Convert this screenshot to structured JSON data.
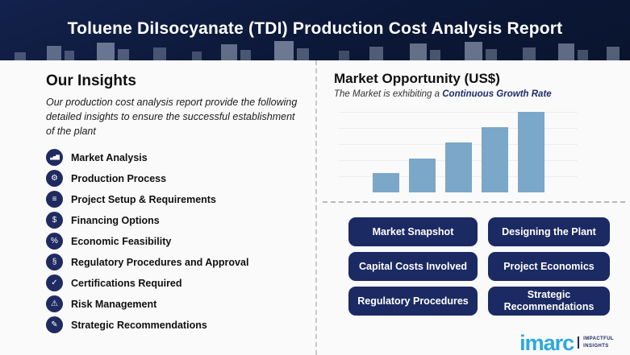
{
  "header": {
    "title": "Toluene DiIsocyanate (TDI) Production Cost Analysis Report"
  },
  "insights": {
    "title": "Our Insights",
    "description": "Our production cost analysis report provide the following detailed insights to ensure the successful establishment of the plant",
    "items": [
      {
        "label": "Market Analysis",
        "icon": "market-analysis-icon",
        "glyph": "▃▅▇"
      },
      {
        "label": "Production Process",
        "icon": "production-process-icon",
        "glyph": "⚙"
      },
      {
        "label": "Project Setup & Requirements",
        "icon": "project-setup-icon",
        "glyph": "≡"
      },
      {
        "label": "Financing Options",
        "icon": "financing-options-icon",
        "glyph": "$"
      },
      {
        "label": "Economic Feasibility",
        "icon": "economic-feasibility-icon",
        "glyph": "%"
      },
      {
        "label": "Regulatory Procedures and Approval",
        "icon": "regulatory-approval-icon",
        "glyph": "§"
      },
      {
        "label": "Certifications Required",
        "icon": "certifications-icon",
        "glyph": "✓"
      },
      {
        "label": "Risk Management",
        "icon": "risk-management-icon",
        "glyph": "⚠"
      },
      {
        "label": "Strategic Recommendations",
        "icon": "strategic-recommendations-icon",
        "glyph": "✎"
      }
    ]
  },
  "market": {
    "title": "Market Opportunity (US$)",
    "subtitle_prefix": "The Market is exhibiting a ",
    "subtitle_highlight": "Continuous Growth Rate"
  },
  "chart_data": {
    "type": "bar",
    "values": [
      24,
      42,
      62,
      81,
      100
    ],
    "title": "Market Opportunity (US$)",
    "xlabel": "",
    "ylabel": "",
    "ylim": [
      0,
      100
    ],
    "grid": true,
    "bar_color": "#7ba7c9",
    "note": "five unlabeled bars of increasing height depicting continuous growth; values are relative heights in % of tallest bar"
  },
  "topics": {
    "buttons": [
      {
        "label": "Market Snapshot",
        "name": "market-snapshot-button"
      },
      {
        "label": "Designing the Plant",
        "name": "designing-the-plant-button"
      },
      {
        "label": "Capital Costs Involved",
        "name": "capital-costs-involved-button"
      },
      {
        "label": "Project Economics",
        "name": "project-economics-button"
      },
      {
        "label": "Regulatory Procedures",
        "name": "regulatory-procedures-button"
      },
      {
        "label": "Strategic Recommendations",
        "name": "strategic-recommendations-button"
      }
    ]
  },
  "logo": {
    "brand": "imarc",
    "tagline_line1": "IMPACTFUL",
    "tagline_line2": "INSIGHTS",
    "brand_color": "#2aa9e0"
  },
  "colors": {
    "header_navy": "#0c1838",
    "accent_navy": "#1c2a63",
    "bar_blue": "#7ba7c9",
    "highlight_navy": "#1f2d6b",
    "divider_gray": "#c9c9c9"
  }
}
